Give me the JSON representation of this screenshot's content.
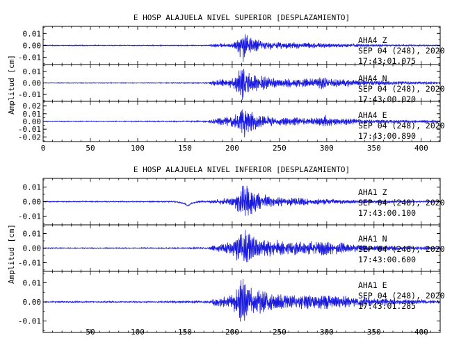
{
  "chart_data": [
    {
      "type": "line",
      "title": "E HOSP ALAJUELA NIVEL SUPERIOR [DESPLAZAMIENTO]",
      "ylabel": "Amplitud [cm]",
      "xlim": [
        0,
        420
      ],
      "x_ticks": [
        "0",
        "50",
        "100",
        "150",
        "200",
        "250",
        "300",
        "350",
        "400"
      ],
      "grid": false,
      "channels": [
        {
          "station": "AHA4",
          "component": "Z",
          "date": "SEP 04 (248), 2020",
          "time": "17:43:01.075",
          "ylim": [
            -0.016,
            0.016
          ],
          "y_ticks": [
            {
              "v": 0.01,
              "label": "0.01"
            },
            {
              "v": 0.0,
              "label": "0.00"
            },
            {
              "v": -0.01,
              "label": "-0.01"
            }
          ],
          "envelope": [
            [
              0,
              0.0004
            ],
            [
              100,
              0.0004
            ],
            [
              175,
              0.0005
            ],
            [
              178,
              0.0012
            ],
            [
              200,
              0.0022
            ],
            [
              205,
              0.004
            ],
            [
              208,
              0.01
            ],
            [
              211,
              0.016
            ],
            [
              214,
              0.012
            ],
            [
              220,
              0.008
            ],
            [
              230,
              0.0045
            ],
            [
              250,
              0.003
            ],
            [
              280,
              0.0025
            ],
            [
              300,
              0.002
            ],
            [
              340,
              0.0012
            ],
            [
              380,
              0.0008
            ],
            [
              420,
              0.0005
            ]
          ],
          "wander": [
            [
              0,
              0
            ],
            [
              420,
              0
            ]
          ]
        },
        {
          "station": "AHA4",
          "component": "N",
          "date": "SEP 04 (248), 2020",
          "time": "17:43:00.020",
          "ylim": [
            -0.016,
            0.016
          ],
          "y_ticks": [
            {
              "v": 0.01,
              "label": "0.01"
            },
            {
              "v": 0.0,
              "label": "0.00"
            },
            {
              "v": -0.01,
              "label": "-0.01"
            }
          ],
          "envelope": [
            [
              0,
              0.0004
            ],
            [
              100,
              0.0004
            ],
            [
              175,
              0.0006
            ],
            [
              178,
              0.002
            ],
            [
              200,
              0.005
            ],
            [
              208,
              0.012
            ],
            [
              212,
              0.016
            ],
            [
              216,
              0.012
            ],
            [
              225,
              0.008
            ],
            [
              240,
              0.005
            ],
            [
              260,
              0.004
            ],
            [
              285,
              0.004
            ],
            [
              295,
              0.0065
            ],
            [
              305,
              0.004
            ],
            [
              340,
              0.0025
            ],
            [
              380,
              0.0015
            ],
            [
              420,
              0.001
            ]
          ],
          "wander": [
            [
              0,
              0
            ],
            [
              420,
              0
            ]
          ]
        },
        {
          "station": "AHA4",
          "component": "E",
          "date": "SEP 04 (248), 2020",
          "time": "17:43:00.890",
          "ylim": [
            -0.026,
            0.026
          ],
          "y_ticks": [
            {
              "v": 0.02,
              "label": "0.02"
            },
            {
              "v": 0.01,
              "label": "0.01"
            },
            {
              "v": 0.0,
              "label": "0.00"
            },
            {
              "v": -0.01,
              "label": "-0.01"
            },
            {
              "v": -0.02,
              "label": "-0.02"
            }
          ],
          "envelope": [
            [
              0,
              0.0006
            ],
            [
              100,
              0.0007
            ],
            [
              175,
              0.001
            ],
            [
              178,
              0.003
            ],
            [
              200,
              0.008
            ],
            [
              208,
              0.016
            ],
            [
              213,
              0.024
            ],
            [
              218,
              0.016
            ],
            [
              228,
              0.01
            ],
            [
              245,
              0.006
            ],
            [
              270,
              0.005
            ],
            [
              290,
              0.005
            ],
            [
              297,
              0.01
            ],
            [
              305,
              0.006
            ],
            [
              340,
              0.003
            ],
            [
              380,
              0.002
            ],
            [
              420,
              0.0015
            ]
          ],
          "wander": [
            [
              0,
              0
            ],
            [
              420,
              0
            ]
          ]
        }
      ]
    },
    {
      "type": "line",
      "title": "E HOSP ALAJUELA NIVEL INFERIOR [DESPLAZAMIENTO]",
      "ylabel": "Amplitud [cm]",
      "xlim": [
        0,
        420
      ],
      "x_ticks": [
        "50",
        "100",
        "150",
        "200",
        "250",
        "300",
        "350",
        "400"
      ],
      "grid": false,
      "channels": [
        {
          "station": "AHA1",
          "component": "Z",
          "date": "SEP 04 (248), 2020",
          "time": "17:43:00.100",
          "ylim": [
            -0.016,
            0.016
          ],
          "y_ticks": [
            {
              "v": 0.01,
              "label": "0.01"
            },
            {
              "v": 0.0,
              "label": "0.00"
            },
            {
              "v": -0.01,
              "label": "-0.01"
            }
          ],
          "envelope": [
            [
              0,
              0.0004
            ],
            [
              100,
              0.0004
            ],
            [
              175,
              0.0006
            ],
            [
              178,
              0.0015
            ],
            [
              200,
              0.003
            ],
            [
              205,
              0.006
            ],
            [
              208,
              0.012
            ],
            [
              211,
              0.016
            ],
            [
              215,
              0.012
            ],
            [
              225,
              0.007
            ],
            [
              240,
              0.004
            ],
            [
              260,
              0.003
            ],
            [
              300,
              0.002
            ],
            [
              340,
              0.0012
            ],
            [
              380,
              0.0008
            ],
            [
              420,
              0.0005
            ]
          ],
          "wander": [
            [
              0,
              0
            ],
            [
              140,
              0
            ],
            [
              150,
              -0.0015
            ],
            [
              153,
              -0.003
            ],
            [
              157,
              -0.0012
            ],
            [
              165,
              0
            ],
            [
              420,
              0
            ]
          ]
        },
        {
          "station": "AHA1",
          "component": "N",
          "date": "SEP 04 (248), 2020",
          "time": "17:43:00.600",
          "ylim": [
            -0.016,
            0.016
          ],
          "y_ticks": [
            {
              "v": 0.01,
              "label": "0.01"
            },
            {
              "v": 0.0,
              "label": "0.00"
            },
            {
              "v": -0.01,
              "label": "-0.01"
            }
          ],
          "envelope": [
            [
              0,
              0.0004
            ],
            [
              100,
              0.0004
            ],
            [
              175,
              0.0006
            ],
            [
              178,
              0.002
            ],
            [
              200,
              0.005
            ],
            [
              208,
              0.012
            ],
            [
              212,
              0.015
            ],
            [
              216,
              0.012
            ],
            [
              225,
              0.008
            ],
            [
              240,
              0.006
            ],
            [
              260,
              0.005
            ],
            [
              280,
              0.005
            ],
            [
              295,
              0.006
            ],
            [
              305,
              0.005
            ],
            [
              330,
              0.003
            ],
            [
              380,
              0.0015
            ],
            [
              420,
              0.001
            ]
          ],
          "wander": [
            [
              0,
              0
            ],
            [
              420,
              0
            ]
          ]
        },
        {
          "station": "AHA1",
          "component": "E",
          "date": "SEP 04 (248), 2020",
          "time": "17:43:01.285",
          "ylim": [
            -0.016,
            0.016
          ],
          "y_ticks": [
            {
              "v": 0.01,
              "label": "0.01"
            },
            {
              "v": 0.0,
              "label": "0.00"
            },
            {
              "v": -0.01,
              "label": "-0.01"
            }
          ],
          "envelope": [
            [
              0,
              0.0004
            ],
            [
              100,
              0.0004
            ],
            [
              175,
              0.0006
            ],
            [
              178,
              0.0015
            ],
            [
              200,
              0.004
            ],
            [
              208,
              0.01
            ],
            [
              211,
              0.016
            ],
            [
              215,
              0.011
            ],
            [
              225,
              0.007
            ],
            [
              240,
              0.005
            ],
            [
              260,
              0.004
            ],
            [
              290,
              0.004
            ],
            [
              300,
              0.0045
            ],
            [
              330,
              0.003
            ],
            [
              380,
              0.0015
            ],
            [
              420,
              0.001
            ]
          ],
          "wander": [
            [
              0,
              0
            ],
            [
              420,
              0
            ]
          ]
        }
      ]
    }
  ],
  "colors": {
    "trace": "#1a1adc",
    "frame": "#000000"
  }
}
